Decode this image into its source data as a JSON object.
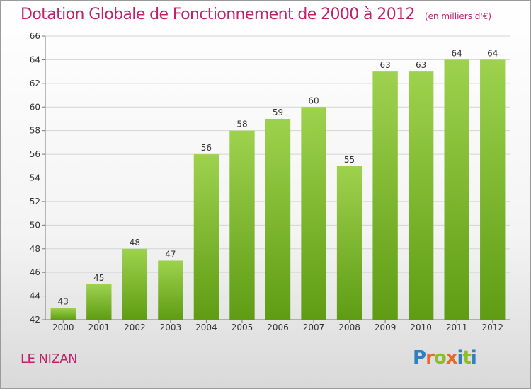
{
  "title": "Dotation Globale de Fonctionnement de 2000 à 2012",
  "subtitle": "(en milliers d'€)",
  "commune": "LE NIZAN",
  "logo": {
    "letters": [
      "P",
      "r",
      "o",
      "x",
      "i",
      "t",
      "i"
    ],
    "colors": [
      "#2f7fc1",
      "#e9692c",
      "#8cbf26",
      "#e9692c",
      "#2f7fc1",
      "#8cbf26",
      "#2f7fc1"
    ]
  },
  "colors": {
    "bar_top": "#9ed24e",
    "bar_bottom": "#5f9c14",
    "accent": "#c0226a"
  },
  "chart_data": {
    "type": "bar",
    "categories": [
      "2000",
      "2001",
      "2002",
      "2003",
      "2004",
      "2005",
      "2006",
      "2007",
      "2008",
      "2009",
      "2010",
      "2011",
      "2012"
    ],
    "values": [
      43,
      45,
      48,
      47,
      56,
      58,
      59,
      60,
      55,
      63,
      63,
      64,
      64
    ],
    "ylim": [
      42,
      66
    ],
    "yticks": [
      42,
      44,
      46,
      48,
      50,
      52,
      54,
      56,
      58,
      60,
      62,
      64,
      66
    ],
    "grid": true,
    "legend": "none"
  }
}
